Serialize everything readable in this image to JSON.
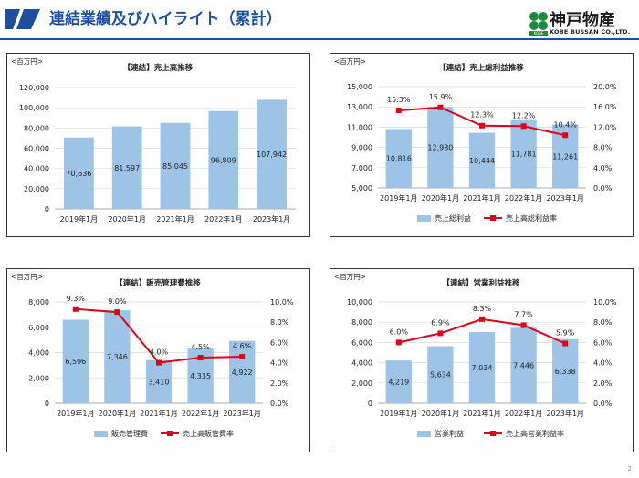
{
  "header": {
    "title": "連結業績及びハイライト（累計）",
    "logo_name": "神戸物産",
    "logo_en": "KOBE BUSSAN CO.,LTD.",
    "logo_badge": "KOBE"
  },
  "page_number": "2",
  "colors": {
    "bar": "#9dc3e6",
    "line": "#e0001b",
    "accent": "#1f4e9c",
    "logo_green": "#1e8a3c"
  },
  "chart_data": [
    {
      "type": "bar",
      "unit": "<百万円>",
      "title": "【連結】売上高推移",
      "categories": [
        "2019年1月",
        "2020年1月",
        "2021年1月",
        "2022年1月",
        "2023年1月"
      ],
      "values": [
        70636,
        81597,
        85045,
        96809,
        107942
      ],
      "value_labels": [
        "70,636",
        "81,597",
        "85,045",
        "96,809",
        "107,942"
      ],
      "ylim": [
        0,
        120000
      ],
      "yticks": [
        "0",
        "20,000",
        "40,000",
        "60,000",
        "80,000",
        "100,000",
        "120,000"
      ]
    },
    {
      "type": "bar+line",
      "unit": "<百万円>",
      "title": "【連結】売上総利益推移",
      "categories": [
        "2019年1月",
        "2020年1月",
        "2021年1月",
        "2022年1月",
        "2023年1月"
      ],
      "values": [
        10816,
        12980,
        10444,
        11781,
        11261
      ],
      "value_labels": [
        "10,816",
        "12,980",
        "10,444",
        "11,781",
        "11,261"
      ],
      "ylim": [
        5000,
        15000
      ],
      "yticks": [
        "5,000",
        "7,000",
        "9,000",
        "11,000",
        "13,000",
        "15,000"
      ],
      "line_values": [
        15.3,
        15.9,
        12.3,
        12.2,
        10.4
      ],
      "line_labels": [
        "15.3%",
        "15.9%",
        "12.3%",
        "12.2%",
        "10.4%"
      ],
      "y2lim": [
        0,
        20
      ],
      "y2ticks": [
        "0.0%",
        "4.0%",
        "8.0%",
        "12.0%",
        "16.0%",
        "20.0%"
      ],
      "legend": [
        "売上総利益",
        "売上高総利益率"
      ]
    },
    {
      "type": "bar+line",
      "unit": "<百万円>",
      "title": "【連結】販売管理費推移",
      "categories": [
        "2019年1月",
        "2020年1月",
        "2021年1月",
        "2022年1月",
        "2023年1月"
      ],
      "values": [
        6596,
        7346,
        3410,
        4335,
        4922
      ],
      "value_labels": [
        "6,596",
        "7,346",
        "3,410",
        "4,335",
        "4,922"
      ],
      "ylim": [
        0,
        8000
      ],
      "yticks": [
        "0",
        "2,000",
        "4,000",
        "6,000",
        "8,000"
      ],
      "line_values": [
        9.3,
        9.0,
        4.0,
        4.5,
        4.6
      ],
      "line_labels": [
        "9.3%",
        "9.0%",
        "4.0%",
        "4.5%",
        "4.6%"
      ],
      "y2lim": [
        0,
        10
      ],
      "y2ticks": [
        "0.0%",
        "2.0%",
        "4.0%",
        "6.0%",
        "8.0%",
        "10.0%"
      ],
      "legend": [
        "販売管理費",
        "売上高販管費率"
      ]
    },
    {
      "type": "bar+line",
      "unit": "<百万円>",
      "title": "【連結】営業利益推移",
      "categories": [
        "2019年1月",
        "2020年1月",
        "2021年1月",
        "2022年1月",
        "2023年1月"
      ],
      "values": [
        4219,
        5634,
        7034,
        7446,
        6338
      ],
      "value_labels": [
        "4,219",
        "5,634",
        "7,034",
        "7,446",
        "6,338"
      ],
      "ylim": [
        0,
        10000
      ],
      "yticks": [
        "0",
        "2,000",
        "4,000",
        "6,000",
        "8,000",
        "10,000"
      ],
      "line_values": [
        6.0,
        6.9,
        8.3,
        7.7,
        5.9
      ],
      "line_labels": [
        "6.0%",
        "6.9%",
        "8.3%",
        "7.7%",
        "5.9%"
      ],
      "y2lim": [
        0,
        10
      ],
      "y2ticks": [
        "0.0%",
        "2.0%",
        "4.0%",
        "6.0%",
        "8.0%",
        "10.0%"
      ],
      "legend": [
        "営業利益",
        "売上高営業利益率"
      ]
    }
  ]
}
